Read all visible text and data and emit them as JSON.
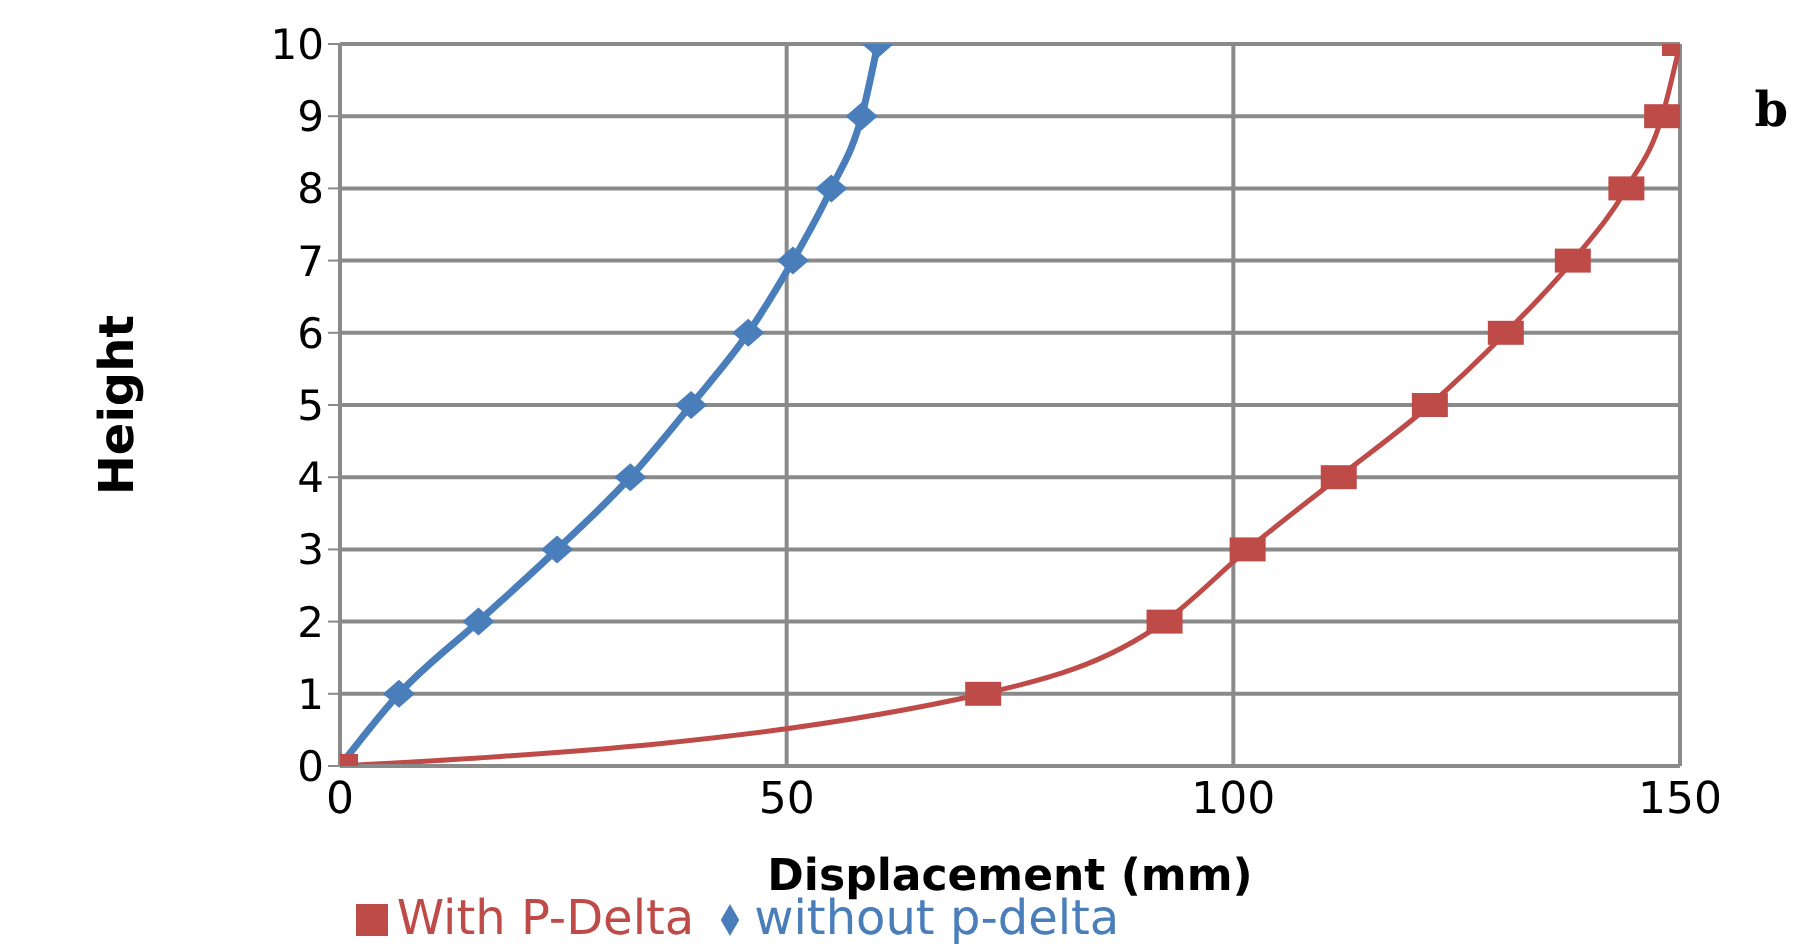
{
  "chart_data": {
    "type": "line",
    "xlabel": "Displacement (mm)",
    "ylabel": "Height",
    "annotations": [
      "b"
    ],
    "xlim": [
      0,
      150
    ],
    "xticks": [
      0,
      50,
      100,
      150
    ],
    "ylim": [
      0,
      10
    ],
    "yticks": [
      0,
      1,
      2,
      3,
      4,
      5,
      6,
      7,
      8,
      9,
      10
    ],
    "grid": true,
    "legend": "bottom",
    "line_style": "solid",
    "series": [
      {
        "name": "without p-delta",
        "color": "#4a7ebb",
        "marker": "diamond",
        "x": [
          0,
          6.6,
          15.5,
          24.3,
          32.5,
          39.3,
          45.7,
          50.7,
          55,
          58.4,
          60.2
        ],
        "values": [
          0,
          1,
          2,
          3,
          4,
          5,
          6,
          7,
          8,
          9,
          10
        ]
      },
      {
        "name": "With P-Delta",
        "color": "#be4b48",
        "marker": "square",
        "x": [
          0,
          72,
          92.3,
          101.6,
          111.8,
          122,
          130.5,
          138,
          144,
          148,
          150
        ],
        "values": [
          0,
          1,
          2,
          3,
          4,
          5,
          6,
          7,
          8,
          9,
          10
        ]
      }
    ]
  }
}
